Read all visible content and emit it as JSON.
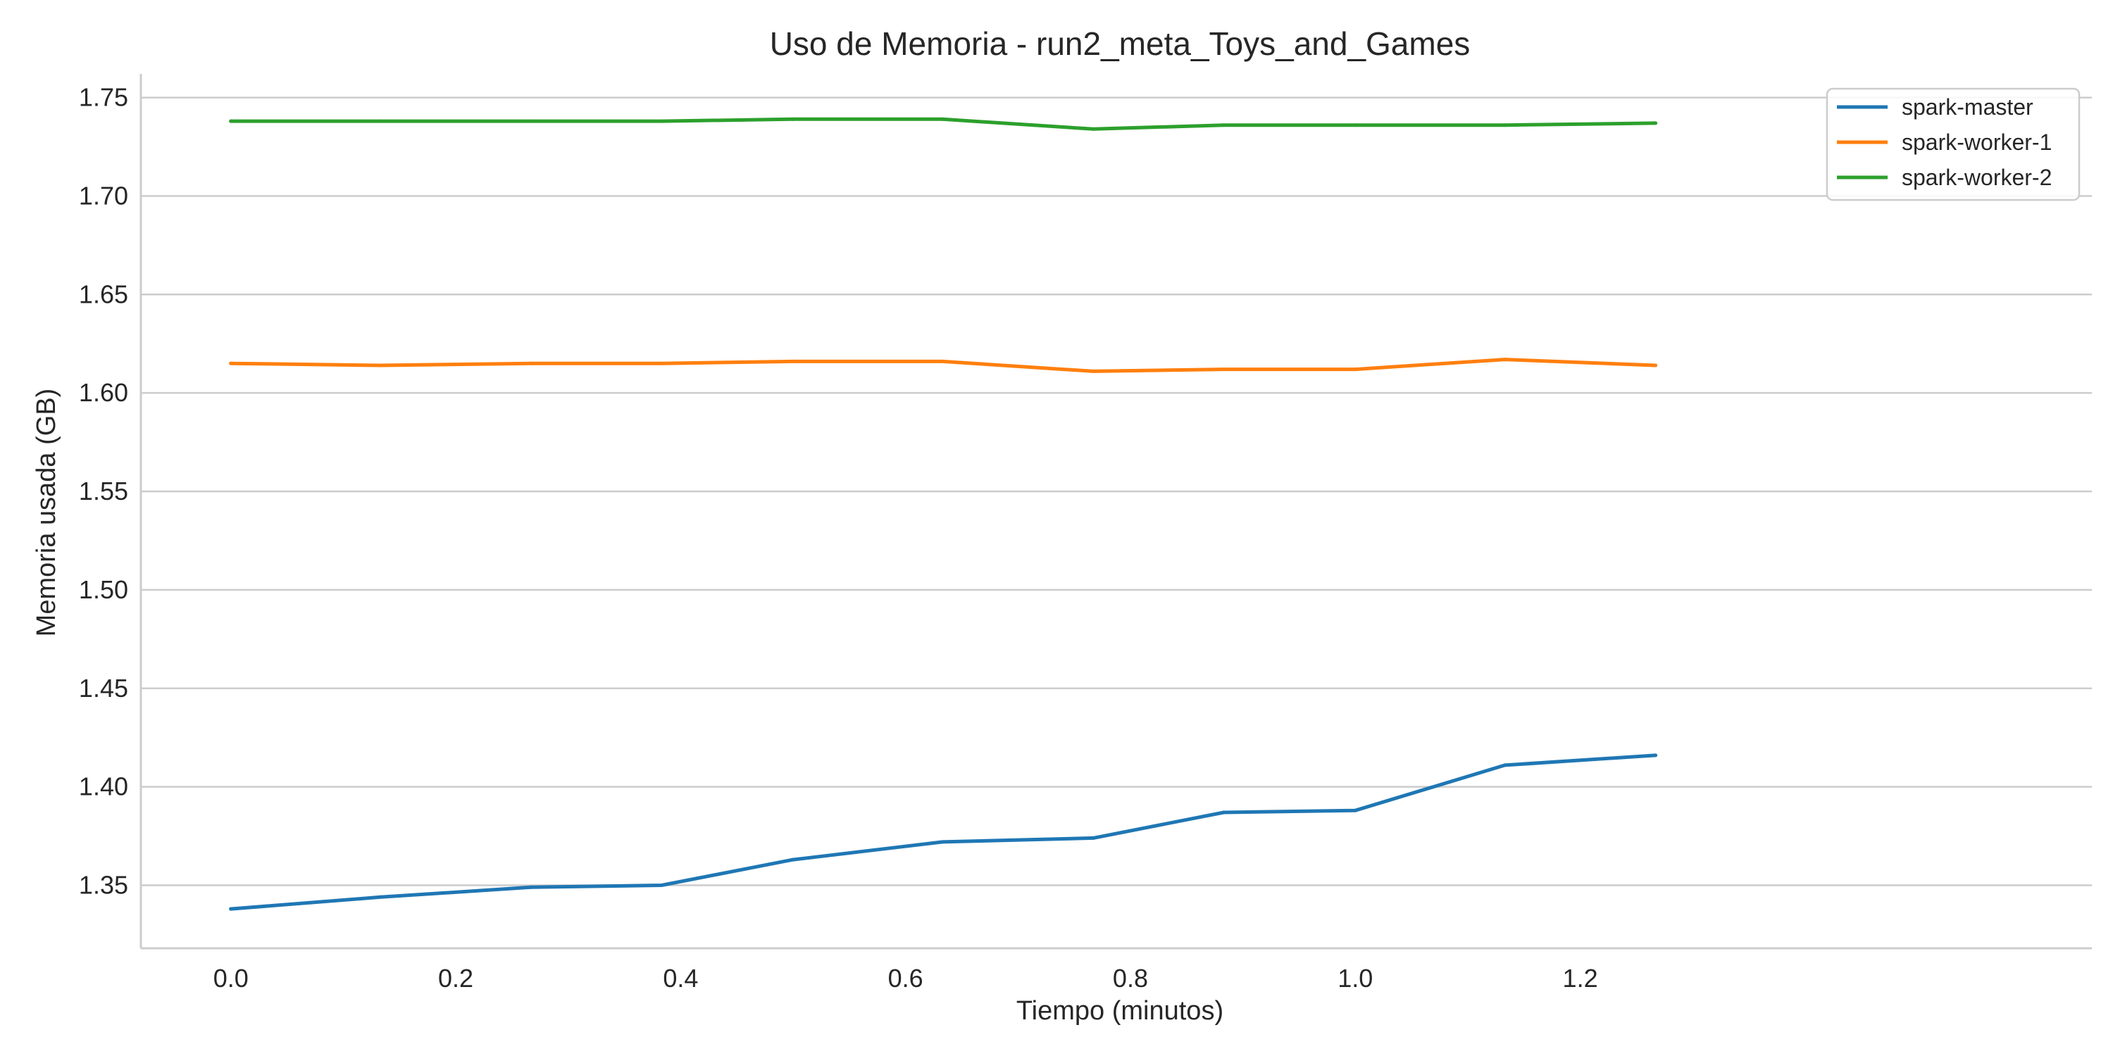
{
  "chart_data": {
    "type": "line",
    "title": "Uso de Memoria - run2_meta_Toys_and_Games",
    "xlabel": "Tiempo (minutos)",
    "ylabel": "Memoria usada (GB)",
    "xlim": [
      -0.08,
      1.655
    ],
    "ylim": [
      1.318,
      1.762
    ],
    "xticks": [
      0.0,
      0.2,
      0.4,
      0.6,
      0.8,
      1.0,
      1.2
    ],
    "xtick_labels": [
      "0.0",
      "0.2",
      "0.4",
      "0.6",
      "0.8",
      "1.0",
      "1.2"
    ],
    "yticks": [
      1.35,
      1.4,
      1.45,
      1.5,
      1.55,
      1.6,
      1.65,
      1.7,
      1.75
    ],
    "ytick_labels": [
      "1.35",
      "1.40",
      "1.45",
      "1.50",
      "1.55",
      "1.60",
      "1.65",
      "1.70",
      "1.75"
    ],
    "grid": "horizontal",
    "legend_position": "top-right",
    "x": [
      0.0,
      0.133,
      0.267,
      0.383,
      0.5,
      0.633,
      0.767,
      0.883,
      1.0,
      1.133,
      1.267
    ],
    "series": [
      {
        "name": "spark-master",
        "color": "#1f77b4",
        "values": [
          1.338,
          1.344,
          1.349,
          1.35,
          1.363,
          1.372,
          1.374,
          1.387,
          1.388,
          1.411,
          1.416
        ]
      },
      {
        "name": "spark-worker-1",
        "color": "#ff7f0e",
        "values": [
          1.615,
          1.614,
          1.615,
          1.615,
          1.616,
          1.616,
          1.611,
          1.612,
          1.612,
          1.617,
          1.614
        ]
      },
      {
        "name": "spark-worker-2",
        "color": "#2ca02c",
        "values": [
          1.738,
          1.738,
          1.738,
          1.738,
          1.739,
          1.739,
          1.734,
          1.736,
          1.736,
          1.736,
          1.737
        ]
      }
    ]
  }
}
